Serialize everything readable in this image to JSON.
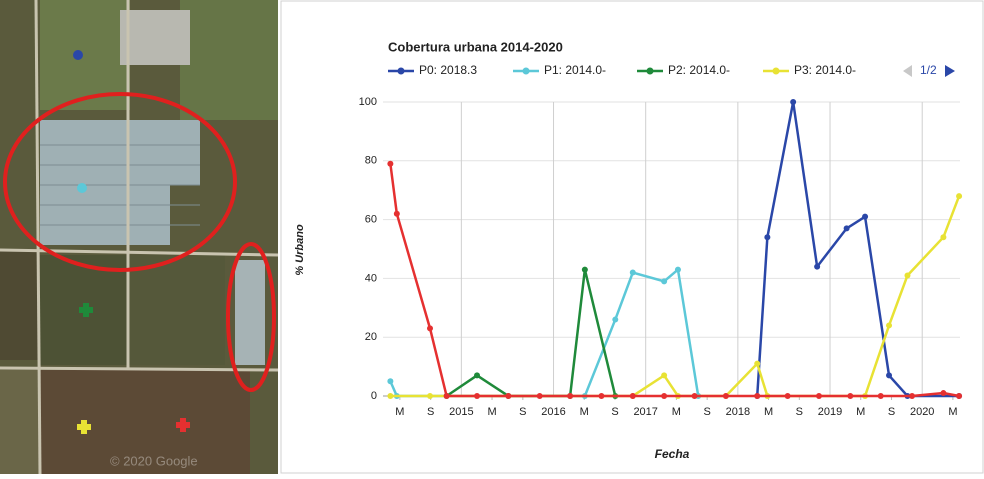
{
  "map_attribution": "© 2020 Google",
  "chart_data": {
    "type": "line",
    "title": "Cobertura urbana 2014-2020",
    "xlabel": "Fecha",
    "ylabel": "% Urbano",
    "pager": "1/2",
    "xlim": [
      2014.15,
      2020.41
    ],
    "ylim": [
      0,
      100
    ],
    "yticks": [
      0,
      20,
      40,
      60,
      80,
      100
    ],
    "xticks": [
      {
        "value": 2014.333,
        "label": "M"
      },
      {
        "value": 2014.667,
        "label": "S"
      },
      2015,
      {
        "value": 2015.333,
        "label": "M"
      },
      {
        "value": 2015.667,
        "label": "S"
      },
      2016,
      {
        "value": 2016.333,
        "label": "M"
      },
      {
        "value": 2016.667,
        "label": "S"
      },
      2017,
      {
        "value": 2017.333,
        "label": "M"
      },
      {
        "value": 2017.667,
        "label": "S"
      },
      2018,
      {
        "value": 2018.333,
        "label": "M"
      },
      {
        "value": 2018.667,
        "label": "S"
      },
      2019,
      {
        "value": 2019.333,
        "label": "M"
      },
      {
        "value": 2019.667,
        "label": "S"
      },
      2020,
      {
        "value": 2020.333,
        "label": "M"
      }
    ],
    "grid": true,
    "series": [
      {
        "name": "P0: 2018.3",
        "color": "#2a47a8",
        "x": [
          2018.21,
          2018.32,
          2018.6,
          2018.86,
          2019.18,
          2019.38,
          2019.64,
          2019.84,
          2020.4
        ],
        "values": [
          0,
          54,
          100,
          44,
          57,
          61,
          7,
          0,
          0
        ]
      },
      {
        "name": "P1: 2014.0-",
        "color": "#5cc8d8",
        "x": [
          2014.23,
          2014.3,
          2016.34,
          2016.67,
          2016.86,
          2017.2,
          2017.35,
          2017.57
        ],
        "values": [
          5,
          0,
          0,
          26,
          42,
          39,
          43,
          0
        ]
      },
      {
        "name": "P2: 2014.0-",
        "color": "#1f8a3a",
        "x": [
          2014.84,
          2015.17,
          2015.51,
          2016.18,
          2016.34,
          2016.67
        ],
        "values": [
          0,
          7,
          0,
          0,
          43,
          0
        ]
      },
      {
        "name": "P3: 2014.0-",
        "color": "#e8e234",
        "x": [
          2014.23,
          2014.66,
          2016.86,
          2017.2,
          2017.35,
          2017.87,
          2018.21,
          2018.32,
          2019.38,
          2019.64,
          2019.84,
          2020.23,
          2020.4
        ],
        "values": [
          0,
          0,
          0,
          7,
          0,
          0,
          11,
          0,
          0,
          24,
          41,
          54,
          68
        ]
      },
      {
        "color": "#e53030",
        "x": [
          2014.23,
          2014.3,
          2014.66,
          2014.84,
          2015.17,
          2015.51,
          2015.85,
          2016.18,
          2016.52,
          2016.86,
          2017.2,
          2017.53,
          2017.87,
          2018.21,
          2018.54,
          2018.88,
          2019.22,
          2019.55,
          2019.89,
          2020.23,
          2020.4
        ],
        "values": [
          79,
          62,
          23,
          0,
          0,
          0,
          0,
          0,
          0,
          0,
          0,
          0,
          0,
          0,
          0,
          0,
          0,
          0,
          0,
          1,
          0
        ]
      }
    ]
  }
}
